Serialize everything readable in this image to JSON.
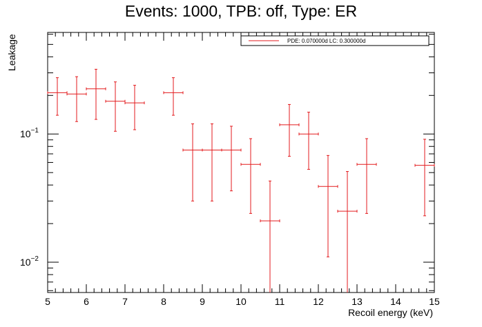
{
  "chart_data": {
    "type": "scatter",
    "title": "Events: 1000, TPB: off, Type: ER",
    "xlabel": "Recoil energy (keV)",
    "ylabel": "Leakage",
    "xlim": [
      5,
      15
    ],
    "ylim": [
      0.0058,
      0.62
    ],
    "yscale": "log",
    "x_ticks": [
      "5",
      "6",
      "7",
      "8",
      "9",
      "10",
      "11",
      "12",
      "13",
      "14",
      "15"
    ],
    "y_ticks": [
      {
        "value": 0.01,
        "base": "10",
        "exp": "−2"
      },
      {
        "value": 0.1,
        "base": "10",
        "exp": "−1"
      }
    ],
    "grid": false,
    "legend_position": "top-right",
    "series": [
      {
        "name": "PDE: 0.070000d LC: 0.300000d",
        "color": "#e31a1c",
        "points": [
          {
            "x": 5.25,
            "xerr": 0.25,
            "y": 0.21,
            "ylo": 0.14,
            "yhi": 0.275
          },
          {
            "x": 5.75,
            "xerr": 0.25,
            "y": 0.205,
            "ylo": 0.125,
            "yhi": 0.28
          },
          {
            "x": 6.25,
            "xerr": 0.25,
            "y": 0.225,
            "ylo": 0.13,
            "yhi": 0.32
          },
          {
            "x": 6.75,
            "xerr": 0.25,
            "y": 0.18,
            "ylo": 0.105,
            "yhi": 0.255
          },
          {
            "x": 7.25,
            "xerr": 0.25,
            "y": 0.175,
            "ylo": 0.108,
            "yhi": 0.24
          },
          {
            "x": 8.25,
            "xerr": 0.25,
            "y": 0.21,
            "ylo": 0.14,
            "yhi": 0.275
          },
          {
            "x": 8.75,
            "xerr": 0.25,
            "y": 0.075,
            "ylo": 0.03,
            "yhi": 0.12
          },
          {
            "x": 9.25,
            "xerr": 0.25,
            "y": 0.075,
            "ylo": 0.03,
            "yhi": 0.12
          },
          {
            "x": 9.75,
            "xerr": 0.25,
            "y": 0.075,
            "ylo": 0.036,
            "yhi": 0.115
          },
          {
            "x": 10.25,
            "xerr": 0.25,
            "y": 0.058,
            "ylo": 0.024,
            "yhi": 0.092
          },
          {
            "x": 10.75,
            "xerr": 0.25,
            "y": 0.021,
            "ylo": 0.0058,
            "yhi": 0.043
          },
          {
            "x": 11.25,
            "xerr": 0.25,
            "y": 0.118,
            "ylo": 0.067,
            "yhi": 0.17
          },
          {
            "x": 11.75,
            "xerr": 0.25,
            "y": 0.1,
            "ylo": 0.053,
            "yhi": 0.148
          },
          {
            "x": 12.25,
            "xerr": 0.25,
            "y": 0.039,
            "ylo": 0.011,
            "yhi": 0.068
          },
          {
            "x": 12.75,
            "xerr": 0.25,
            "y": 0.025,
            "ylo": 0.0058,
            "yhi": 0.051
          },
          {
            "x": 13.25,
            "xerr": 0.25,
            "y": 0.058,
            "ylo": 0.024,
            "yhi": 0.092
          },
          {
            "x": 14.75,
            "xerr": 0.25,
            "y": 0.057,
            "ylo": 0.023,
            "yhi": 0.091
          }
        ]
      }
    ]
  }
}
